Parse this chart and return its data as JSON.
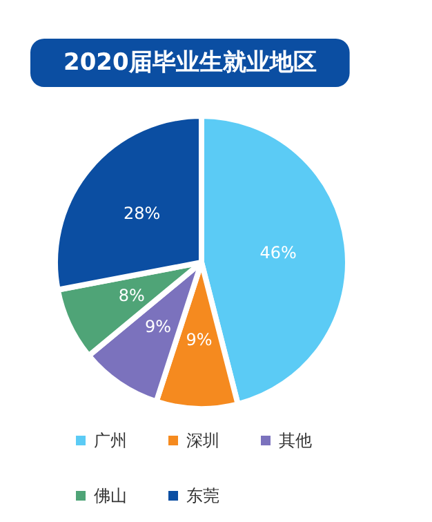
{
  "chart_data": {
    "type": "pie",
    "title": "2020届毕业生就业地区",
    "categories": [
      "广州",
      "深圳",
      "其他",
      "佛山",
      "东莞"
    ],
    "values": [
      46,
      9,
      9,
      8,
      28
    ],
    "colors": [
      "#5bcbf5",
      "#f58a1f",
      "#7b72bd",
      "#4fa477",
      "#0b4ea2"
    ],
    "value_labels": [
      "46%",
      "9%",
      "9%",
      "8%",
      "28%"
    ],
    "legend": "bottom"
  }
}
